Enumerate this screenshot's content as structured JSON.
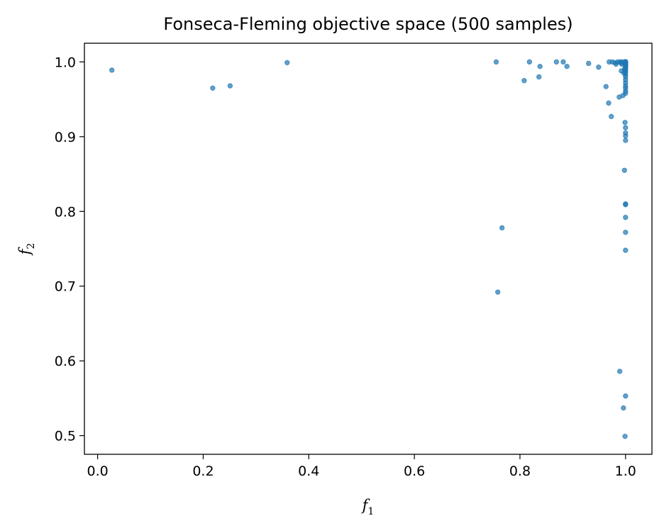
{
  "chart_data": {
    "type": "scatter",
    "title": "Fonseca-Fleming objective space (500 samples)",
    "xlabel": {
      "base": "f",
      "sub": "1"
    },
    "ylabel": {
      "base": "f",
      "sub": "2"
    },
    "xlim": [
      -0.025,
      1.05
    ],
    "ylim": [
      0.475,
      1.025
    ],
    "xticks": [
      0.0,
      0.2,
      0.4,
      0.6,
      0.8,
      1.0
    ],
    "xtick_labels": [
      "0.0",
      "0.2",
      "0.4",
      "0.6",
      "0.8",
      "1.0"
    ],
    "yticks": [
      0.5,
      0.6,
      0.7,
      0.8,
      0.9,
      1.0
    ],
    "ytick_labels": [
      "0.5",
      "0.6",
      "0.7",
      "0.8",
      "0.9",
      "1.0"
    ],
    "grid": false,
    "legend": "none",
    "marker_color": "#1f77b4",
    "marker_alpha": 0.7,
    "series": [
      {
        "x": [
          0.027,
          0.218,
          0.251,
          0.359,
          0.755,
          0.758,
          0.766,
          0.808,
          0.818,
          0.836,
          0.838,
          0.869,
          0.882,
          0.889,
          0.93,
          0.949,
          0.963,
          0.968,
          0.969,
          0.973,
          0.975,
          0.98,
          0.982,
          0.985,
          0.988,
          0.989,
          0.99,
          0.991,
          0.992,
          0.993,
          0.994,
          0.995,
          0.996,
          0.997,
          0.997,
          0.998,
          0.998,
          0.999,
          0.999,
          0.999,
          1.0,
          1.0,
          1.0,
          1.0,
          1.0,
          1.0,
          1.0,
          1.0,
          1.0,
          1.0,
          1.0,
          1.0,
          1.0,
          1.0,
          1.0,
          1.0,
          1.0,
          1.0,
          1.0,
          1.0,
          1.0,
          1.0,
          1.0,
          1.0,
          1.0,
          1.0,
          1.0,
          1.0,
          1.0,
          1.0,
          1.0,
          1.0,
          1.0,
          1.0,
          1.0,
          1.0,
          1.0,
          1.0,
          1.0,
          1.0,
          1.0,
          1.0,
          1.0,
          1.0,
          1.0,
          1.0,
          1.0,
          1.0,
          1.0,
          1.0,
          1.0,
          1.0,
          1.0,
          1.0,
          1.0
        ],
        "y": [
          0.989,
          0.965,
          0.968,
          0.999,
          1.0,
          0.692,
          0.778,
          0.975,
          1.0,
          0.98,
          0.994,
          1.0,
          1.0,
          0.994,
          0.998,
          0.993,
          0.967,
          0.945,
          1.0,
          0.927,
          1.0,
          0.999,
          0.997,
          1.0,
          0.953,
          0.586,
          1.0,
          0.999,
          0.988,
          0.997,
          1.0,
          0.955,
          0.537,
          0.999,
          0.985,
          0.855,
          0.99,
          0.997,
          0.919,
          0.499,
          0.553,
          0.809,
          0.81,
          0.792,
          0.772,
          0.748,
          0.895,
          0.901,
          0.905,
          0.912,
          0.958,
          0.961,
          0.965,
          0.968,
          0.972,
          0.976,
          0.98,
          0.983,
          0.986,
          0.988,
          0.99,
          0.992,
          0.993,
          0.994,
          0.995,
          0.996,
          0.997,
          0.997,
          0.998,
          0.998,
          0.999,
          0.999,
          0.999,
          1.0,
          1.0,
          1.0,
          1.0,
          1.0,
          1.0,
          1.0,
          1.0,
          1.0,
          1.0,
          1.0,
          1.0,
          1.0,
          1.0,
          1.0,
          1.0,
          1.0,
          1.0,
          1.0,
          1.0,
          1.0,
          1.0
        ]
      }
    ]
  }
}
